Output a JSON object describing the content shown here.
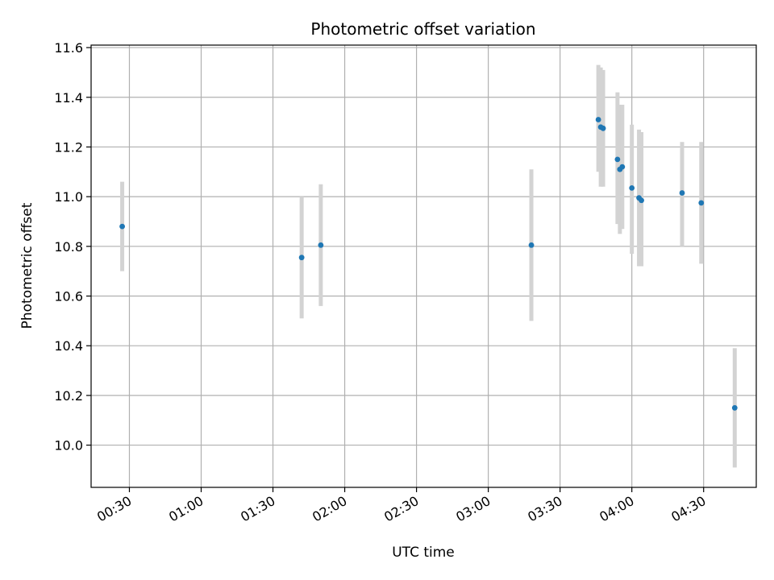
{
  "chart_data": {
    "type": "scatter",
    "title": "Photometric offset variation",
    "xlabel": "UTC time",
    "ylabel": "Photometric offset",
    "x_axis_type": "time",
    "xlim": [
      "00:14",
      "04:52"
    ],
    "ylim": [
      9.83,
      11.61
    ],
    "x_ticks": [
      "00:30",
      "01:00",
      "01:30",
      "02:00",
      "02:30",
      "03:00",
      "03:30",
      "04:00",
      "04:30"
    ],
    "y_ticks": [
      10.0,
      10.2,
      10.4,
      10.6,
      10.8,
      11.0,
      11.2,
      11.4,
      11.6
    ],
    "y_tick_labels": [
      "10.0",
      "10.2",
      "10.4",
      "10.6",
      "10.8",
      "11.0",
      "11.2",
      "11.4",
      "11.6"
    ],
    "grid": true,
    "legend": "none",
    "point_color": "#1f77b4",
    "errorbar_color": "#d3d3d3",
    "points": [
      {
        "x": "00:27",
        "y": 10.88,
        "lo": 10.7,
        "hi": 11.06
      },
      {
        "x": "01:42",
        "y": 10.755,
        "lo": 10.51,
        "hi": 11.0
      },
      {
        "x": "01:50",
        "y": 10.805,
        "lo": 10.56,
        "hi": 11.05
      },
      {
        "x": "03:18",
        "y": 10.805,
        "lo": 10.5,
        "hi": 11.11
      },
      {
        "x": "03:46",
        "y": 11.31,
        "lo": 11.1,
        "hi": 11.53
      },
      {
        "x": "03:47",
        "y": 11.28,
        "lo": 11.04,
        "hi": 11.52
      },
      {
        "x": "03:48",
        "y": 11.275,
        "lo": 11.04,
        "hi": 11.51
      },
      {
        "x": "03:54",
        "y": 11.15,
        "lo": 10.89,
        "hi": 11.42
      },
      {
        "x": "03:55",
        "y": 11.11,
        "lo": 10.85,
        "hi": 11.37
      },
      {
        "x": "03:56",
        "y": 11.12,
        "lo": 10.87,
        "hi": 11.37
      },
      {
        "x": "04:00",
        "y": 11.035,
        "lo": 10.77,
        "hi": 11.29
      },
      {
        "x": "04:03",
        "y": 10.995,
        "lo": 10.72,
        "hi": 11.27
      },
      {
        "x": "04:04",
        "y": 10.985,
        "lo": 10.72,
        "hi": 11.26
      },
      {
        "x": "04:21",
        "y": 11.015,
        "lo": 10.8,
        "hi": 11.22
      },
      {
        "x": "04:29",
        "y": 10.975,
        "lo": 10.73,
        "hi": 11.22
      },
      {
        "x": "04:43",
        "y": 10.15,
        "lo": 9.91,
        "hi": 10.39
      }
    ]
  }
}
